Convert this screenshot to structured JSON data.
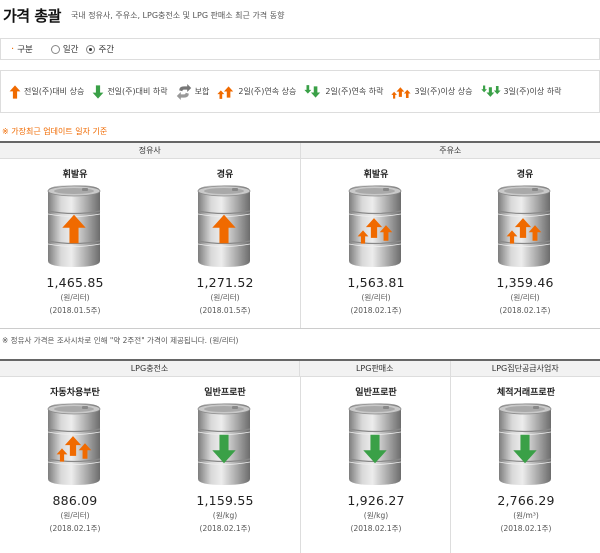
{
  "header": {
    "title": "가격 총괄",
    "subtitle": "국내 정유사, 주유소, LPG충전소 및 LPG 판매소 최근 가격 동향"
  },
  "filter": {
    "label": "구분",
    "options": [
      {
        "label": "일간",
        "selected": false
      },
      {
        "label": "주간",
        "selected": true
      }
    ]
  },
  "legend": [
    {
      "icon": "arrow-up-icon",
      "label": "전일(주)대비 상승"
    },
    {
      "icon": "arrow-down-icon",
      "label": "전일(주)대비 하락"
    },
    {
      "icon": "flat-icon",
      "label": "보합"
    },
    {
      "icon": "double-up-icon",
      "label": "2일(주)연속 상승"
    },
    {
      "icon": "double-down-icon",
      "label": "2일(주)연속 하락"
    },
    {
      "icon": "triple-up-icon",
      "label": "3일(주)이상 상승"
    },
    {
      "icon": "triple-down-icon",
      "label": "3일(주)이상 하락"
    }
  ],
  "notes": {
    "top": "※ 가장최근 업데이트 일자 기준",
    "middle": "※ 정유사 가격은 조사시차로 인해 \"약 2주전\" 가격이 제공됩니다. (원/리터)"
  },
  "panel1": {
    "groups": [
      "정유사",
      "주유소"
    ],
    "cells": [
      {
        "name": "휘발유",
        "price": "1,465.85",
        "unit": "(원/리터)",
        "date": "(2018.01.5주)",
        "trend": "up"
      },
      {
        "name": "경유",
        "price": "1,271.52",
        "unit": "(원/리터)",
        "date": "(2018.01.5주)",
        "trend": "up"
      },
      {
        "name": "휘발유",
        "price": "1,563.81",
        "unit": "(원/리터)",
        "date": "(2018.02.1주)",
        "trend": "triple-up"
      },
      {
        "name": "경유",
        "price": "1,359.46",
        "unit": "(원/리터)",
        "date": "(2018.02.1주)",
        "trend": "triple-up"
      }
    ]
  },
  "panel2": {
    "groups": [
      "LPG충전소",
      "LPG판매소",
      "LPG집단공급사업자"
    ],
    "cells": [
      {
        "name": "자동차용부탄",
        "price": "886.09",
        "unit": "(원/리터)",
        "date": "(2018.02.1주)",
        "trend": "triple-up"
      },
      {
        "name": "일반프로판",
        "price": "1,159.55",
        "unit": "(원/kg)",
        "date": "(2018.02.1주)",
        "trend": "down"
      },
      {
        "name": "일반프로판",
        "price": "1,926.27",
        "unit": "(원/kg)",
        "date": "(2018.02.1주)",
        "trend": "down"
      },
      {
        "name": "체적거래프로판",
        "price": "2,766.29",
        "unit": "(원/m³)",
        "date": "(2018.02.1주)",
        "trend": "down"
      }
    ]
  },
  "colors": {
    "up": "#f06a00",
    "down": "#3aa047",
    "flat": "#666666",
    "barrel": "#9a9a9a"
  }
}
